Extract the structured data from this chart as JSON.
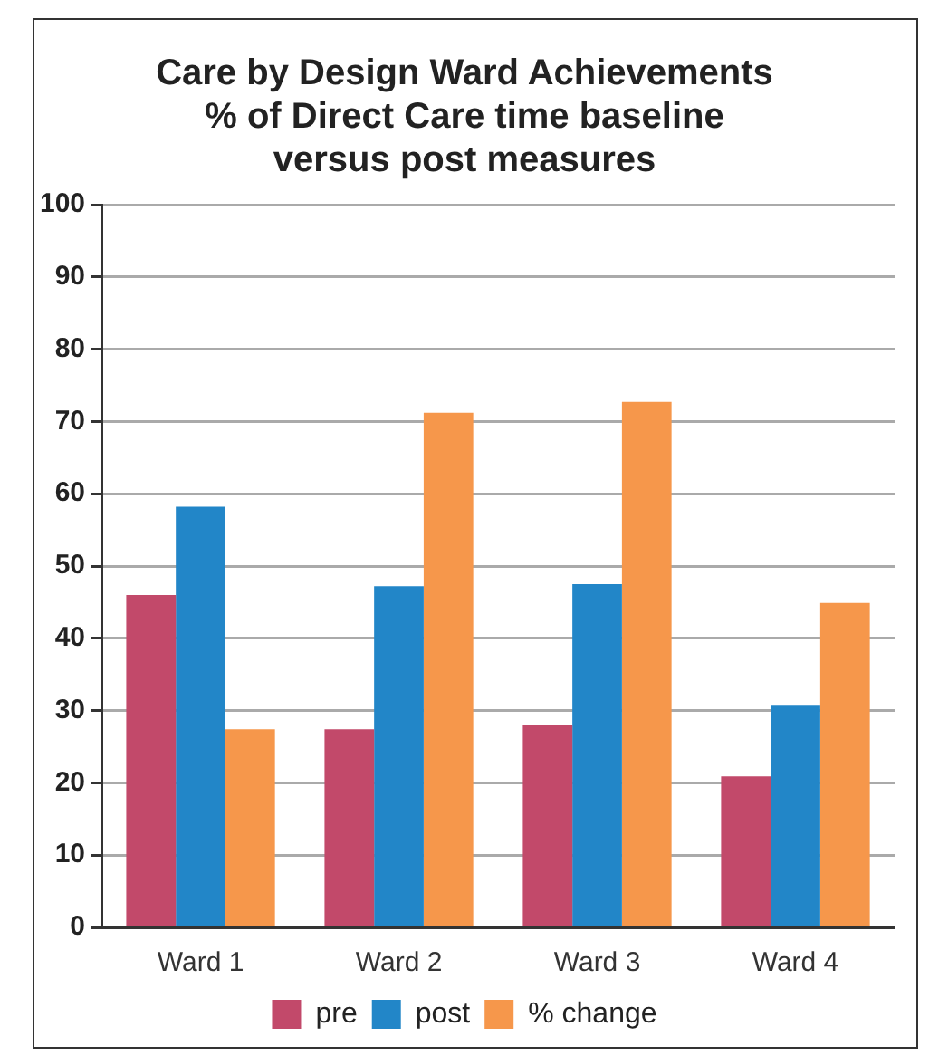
{
  "chart_data": {
    "type": "bar",
    "title": "Care by Design Ward Achievements\n% of Direct Care time baseline\nversus post measures",
    "categories": [
      "Ward 1",
      "Ward 2",
      "Ward 3",
      "Ward 4"
    ],
    "series": [
      {
        "name": "pre",
        "color": "#c2496a",
        "values": [
          46,
          27.4,
          28,
          20.9
        ]
      },
      {
        "name": "post",
        "color": "#2286c8",
        "values": [
          58.2,
          47.2,
          47.5,
          30.8
        ]
      },
      {
        "name": "% change",
        "color": "#f6974b",
        "values": [
          27.4,
          71.2,
          72.7,
          44.9
        ]
      }
    ],
    "ylim": [
      0,
      100
    ],
    "yticks": [
      0,
      10,
      20,
      30,
      40,
      50,
      60,
      70,
      80,
      90,
      100
    ],
    "grid": "y",
    "legend": "bottom"
  }
}
